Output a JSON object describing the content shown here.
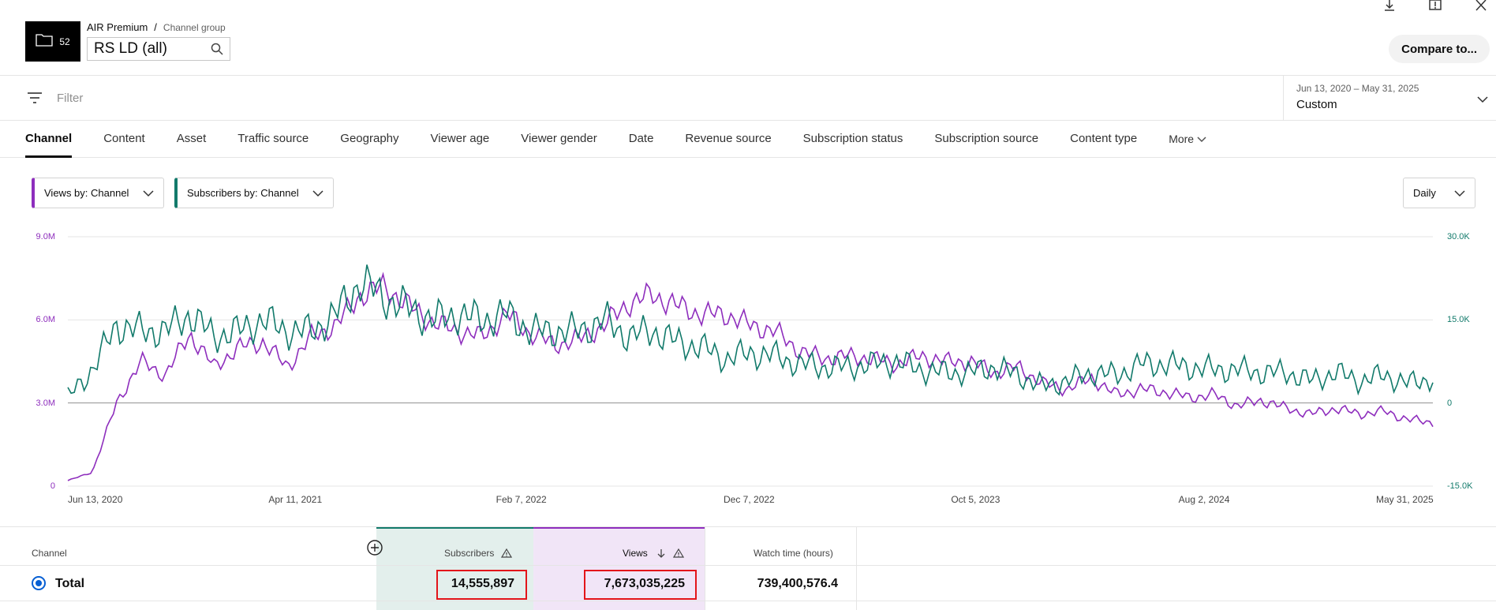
{
  "window": {
    "icons": [
      "download-icon",
      "feedback-icon",
      "close-icon"
    ]
  },
  "header": {
    "group_count": "52",
    "breadcrumb_parent": "AIR Premium",
    "breadcrumb_sep": "/",
    "breadcrumb_current": "Channel group",
    "search_value": "RS LD (all)",
    "compare_label": "Compare to..."
  },
  "filter": {
    "placeholder": "Filter",
    "date_range": "Jun 13, 2020 – May 31, 2025",
    "date_mode": "Custom"
  },
  "tabs": [
    "Channel",
    "Content",
    "Asset",
    "Traffic source",
    "Geography",
    "Viewer age",
    "Viewer gender",
    "Date",
    "Revenue source",
    "Subscription status",
    "Subscription source",
    "Content type"
  ],
  "tabs_more": "More",
  "controls": {
    "views_selector": "Views by: Channel",
    "subs_selector": "Subscribers by: Channel",
    "interval": "Daily"
  },
  "colors": {
    "views": "#8e2ebd",
    "subscribers": "#127a6b",
    "highlight": "#e3151a"
  },
  "chart_data": {
    "type": "line",
    "x_ticks": [
      "Jun 13, 2020",
      "Apr 11, 2021",
      "Feb 7, 2022",
      "Dec 7, 2022",
      "Oct 5, 2023",
      "Aug 2, 2024",
      "May 31, 2025"
    ],
    "y_left_ticks": [
      "9.0M",
      "6.0M",
      "3.0M",
      "0"
    ],
    "y_right_ticks": [
      "30.0K",
      "15.0K",
      "0",
      "-15.0K"
    ],
    "y_left_range": [
      0,
      9000000
    ],
    "y_right_range": [
      -15000,
      30000
    ],
    "series": [
      {
        "name": "Views",
        "axis": "left",
        "color": "#8e2ebd",
        "values": [
          200000,
          500000,
          3000000,
          4500000,
          4000000,
          5500000,
          4300000,
          5000000,
          5200000,
          4300000,
          5400000,
          5800000,
          6900000,
          7200000,
          6500000,
          5900000,
          5600000,
          5400000,
          6200000,
          5500000,
          5100000,
          5300000,
          5800000,
          6600000,
          6900000,
          6500000,
          6200000,
          6200000,
          5800000,
          5600000,
          4900000,
          4600000,
          4700000,
          4600000,
          4400000,
          4700000,
          4500000,
          4500000,
          4100000,
          4300000,
          3700000,
          3500000,
          3900000,
          3300000,
          3500000,
          3400000,
          3200000,
          3300000,
          2900000,
          3100000,
          2800000,
          2600000,
          2800000,
          2600000,
          2700000,
          2400000,
          2300000
        ]
      },
      {
        "name": "Subscribers",
        "axis": "right",
        "color": "#127a6b",
        "values": [
          1000,
          6000,
          14000,
          13000,
          13000,
          16000,
          12000,
          13000,
          15000,
          13000,
          13000,
          16000,
          22000,
          19000,
          17000,
          15000,
          16000,
          15000,
          16000,
          13000,
          13000,
          13000,
          15000,
          12000,
          13000,
          11000,
          10000,
          8000,
          9000,
          8500,
          7000,
          6500,
          6500,
          7000,
          7500,
          6000,
          5500,
          5500,
          6500,
          5000,
          3000,
          4000,
          5500,
          5000,
          7000,
          7000,
          6500,
          6000,
          6000,
          5500,
          5500,
          4000,
          5500,
          4000,
          5000,
          3500,
          4500
        ]
      }
    ]
  },
  "table": {
    "columns": {
      "channel": "Channel",
      "subscribers": "Subscribers",
      "views": "Views",
      "watch_time": "Watch time (hours)"
    },
    "total": {
      "label": "Total",
      "subscribers": "14,555,897",
      "views": "7,673,035,225",
      "watch_time": "739,400,576.4"
    }
  }
}
